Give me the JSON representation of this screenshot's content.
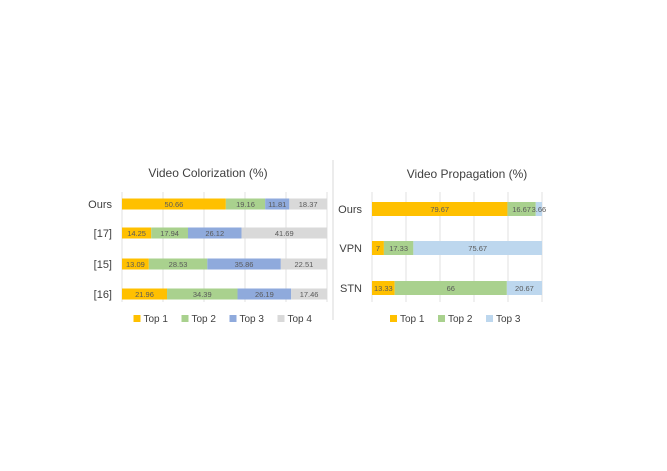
{
  "chart_data": [
    {
      "type": "bar",
      "stacked": true,
      "orientation": "horizontal",
      "title": "Video Colorization  (%)",
      "categories": [
        "Ours",
        "[17]",
        "[15]",
        "[16]"
      ],
      "series": [
        {
          "name": "Top 1",
          "color": "#FFC000",
          "values": [
            50.66,
            14.25,
            13.09,
            21.96
          ]
        },
        {
          "name": "Top 2",
          "color": "#A9D18E",
          "values": [
            19.16,
            17.94,
            28.53,
            34.39
          ]
        },
        {
          "name": "Top 3",
          "color": "#8FAADC",
          "values": [
            11.81,
            26.12,
            35.86,
            26.19
          ]
        },
        {
          "name": "Top 4",
          "color": "#D9D9D9",
          "values": [
            18.37,
            41.69,
            22.51,
            17.46
          ]
        }
      ],
      "xlim": [
        0,
        100
      ],
      "grid": true,
      "legend_position": "bottom"
    },
    {
      "type": "bar",
      "stacked": true,
      "orientation": "horizontal",
      "title": "Video Propagation (%)",
      "categories": [
        "Ours",
        "VPN",
        "STN"
      ],
      "series": [
        {
          "name": "Top 1",
          "color": "#FFC000",
          "values": [
            79.67,
            7,
            13.33
          ],
          "labels": [
            "79.67",
            "7",
            "13.33"
          ]
        },
        {
          "name": "Top 2",
          "color": "#A9D18E",
          "values": [
            16.67,
            17.33,
            66
          ],
          "labels": [
            "16.67",
            "17.33",
            "66"
          ]
        },
        {
          "name": "Top 3",
          "color": "#BDD7EE",
          "values": [
            3.66,
            75.67,
            20.67
          ],
          "labels": [
            "3.66",
            "75.67",
            "20.67"
          ]
        }
      ],
      "xlim": [
        0,
        100
      ],
      "grid": true,
      "legend_position": "bottom"
    }
  ]
}
